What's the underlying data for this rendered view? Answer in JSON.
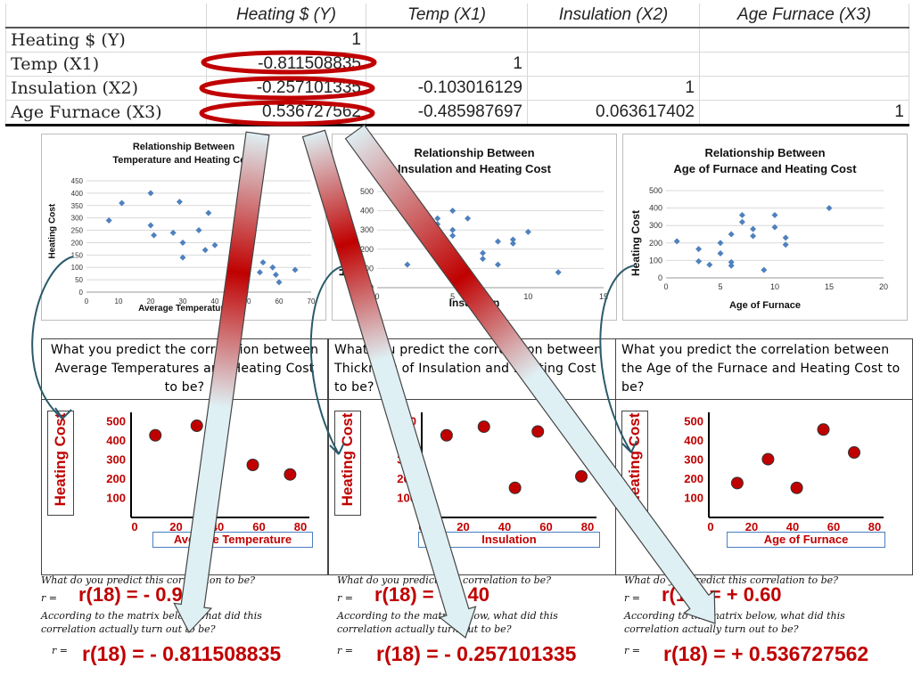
{
  "matrix": {
    "headers": [
      "",
      "Heating $ (Y)",
      "Temp (X1)",
      "Insulation (X2)",
      "Age Furnace (X3)"
    ],
    "rows": [
      {
        "label": "Heating $ (Y)",
        "values": [
          "1",
          "",
          "",
          ""
        ]
      },
      {
        "label": "Temp (X1)",
        "values": [
          "-0.811508835",
          "1",
          "",
          ""
        ]
      },
      {
        "label": "Insulation (X2)",
        "values": [
          "-0.257101335",
          "-0.103016129",
          "1",
          ""
        ]
      },
      {
        "label": "Age Furnace (X3)",
        "values": [
          "0.536727562",
          "-0.485987697",
          "0.063617402",
          "1"
        ]
      }
    ]
  },
  "charts": {
    "temp": {
      "title_line1": "Relationship Between",
      "title_line2": "Temperature and Heating Cost",
      "ylabel": "Heating Cost",
      "xlabel": "Average Temperature"
    },
    "insul": {
      "title_line1": "Relationship Between",
      "title_line2": "Insulation and Heating Cost",
      "ylabel": "Heating Cost",
      "xlabel": "Insulation"
    },
    "age": {
      "title_line1": "Relationship Between",
      "title_line2": "Age of Furnace and Heating Cost",
      "ylabel": "Heating Cost",
      "xlabel": "Age of Furnace"
    }
  },
  "chart_data": [
    {
      "type": "scatter",
      "title": "Relationship Between Temperature and Heating Cost",
      "xlabel": "Average Temperature",
      "ylabel": "Heating Cost",
      "xlim": [
        0,
        70
      ],
      "ylim": [
        0,
        450
      ],
      "xticks": [
        0,
        10,
        20,
        30,
        40,
        50,
        60,
        70
      ],
      "yticks": [
        0,
        50,
        100,
        150,
        200,
        250,
        300,
        350,
        400,
        450
      ],
      "x": [
        7,
        11,
        20,
        20,
        21,
        27,
        29,
        30,
        30,
        35,
        37,
        38,
        40,
        54,
        55,
        58,
        59,
        60,
        65
      ],
      "y": [
        290,
        360,
        400,
        270,
        230,
        240,
        365,
        200,
        140,
        250,
        170,
        320,
        190,
        80,
        120,
        100,
        70,
        40,
        90
      ]
    },
    {
      "type": "scatter",
      "title": "Relationship Between Insulation and Heating Cost",
      "xlabel": "Insulation",
      "ylabel": "Heating Cost",
      "xlim": [
        0,
        15
      ],
      "ylim": [
        0,
        500
      ],
      "xticks": [
        0,
        5,
        10,
        15
      ],
      "yticks": [
        0,
        100,
        200,
        300,
        400,
        500
      ],
      "x": [
        2,
        4,
        4,
        5,
        5,
        5,
        5,
        6,
        6,
        7,
        7,
        8,
        8,
        9,
        9,
        10,
        12
      ],
      "y": [
        120,
        330,
        360,
        400,
        270,
        300,
        200,
        90,
        360,
        180,
        150,
        120,
        240,
        230,
        250,
        290,
        80
      ]
    },
    {
      "type": "scatter",
      "title": "Relationship Between Age of Furnace and Heating Cost",
      "xlabel": "Age of Furnace",
      "ylabel": "Heating Cost",
      "xlim": [
        0,
        20
      ],
      "ylim": [
        0,
        500
      ],
      "xticks": [
        0,
        5,
        10,
        15,
        20
      ],
      "yticks": [
        0,
        100,
        200,
        300,
        400,
        500
      ],
      "x": [
        1,
        3,
        3,
        4,
        5,
        5,
        6,
        6,
        6,
        7,
        7,
        8,
        8,
        9,
        10,
        10,
        11,
        11,
        15
      ],
      "y": [
        210,
        165,
        95,
        75,
        200,
        140,
        90,
        70,
        250,
        360,
        320,
        280,
        240,
        45,
        360,
        290,
        230,
        190,
        400
      ]
    },
    {
      "type": "scatter",
      "xlabel": "Average Temperature",
      "ylabel": "Heating Cost",
      "xlim": [
        0,
        80
      ],
      "ylim": [
        0,
        550
      ],
      "xticks": [
        0,
        20,
        40,
        60,
        80
      ],
      "yticks": [
        100,
        200,
        300,
        400,
        500
      ],
      "x": [
        10,
        30,
        57,
        75
      ],
      "y": [
        430,
        480,
        275,
        225
      ]
    },
    {
      "type": "scatter",
      "xlabel": "Insulation",
      "ylabel": "Heating Cost",
      "xlim": [
        0,
        80
      ],
      "ylim": [
        0,
        550
      ],
      "xticks": [
        0,
        20,
        40,
        60,
        80
      ],
      "yticks": [
        100,
        200,
        300,
        400,
        500
      ],
      "x": [
        12,
        30,
        45,
        56,
        77
      ],
      "y": [
        430,
        475,
        155,
        450,
        215
      ]
    },
    {
      "type": "scatter",
      "xlabel": "Age of Furnace",
      "ylabel": "Heating Cost",
      "xlim": [
        0,
        80
      ],
      "ylim": [
        0,
        550
      ],
      "xticks": [
        0,
        20,
        40,
        60,
        80
      ],
      "yticks": [
        100,
        200,
        300,
        400,
        500
      ],
      "x": [
        13,
        28,
        42,
        55,
        70
      ],
      "y": [
        180,
        305,
        155,
        460,
        340
      ]
    }
  ],
  "panels": [
    {
      "question": "What you predict the correlation between Average Temperatures and Heating Cost to be?",
      "ylabel": "Heating Cost",
      "xlabel": "Average Temperature",
      "q1": "What do you predict this correlation to be?",
      "r_prefix": "r =",
      "prediction": "r(18) = - 0.90",
      "q2": "According to the matrix below, what did this correlation actually turn out to be?",
      "actual": "r(18) = - 0.811508835"
    },
    {
      "question": "What you predict the correlation between Thickness of Insulation and Heating Cost to be?",
      "ylabel": "Heating Cost",
      "xlabel": "Insulation",
      "q1": "What do you predict this correlation to be?",
      "r_prefix": "r =",
      "prediction": "r(18) = - 0.40",
      "q2": "According to the matrix below, what did this correlation actually turn out to be?",
      "actual": "r(18) = - 0.257101335"
    },
    {
      "question": "What you predict the correlation between the Age of the Furnace and Heating Cost to be?",
      "ylabel": "Heating Cost",
      "xlabel": "Age of Furnace",
      "q1": "What do you predict this correlation to be?",
      "r_prefix": "r =",
      "prediction": "r(18) = + 0.60",
      "q2": "According to the matrix below, what did this correlation actually turn out to be?",
      "actual": "r(18) = + 0.536727562"
    }
  ],
  "colors": {
    "accent_red": "#c00000",
    "marker_blue": "#4f81bd",
    "arrow_fill": "#dff0f4"
  }
}
